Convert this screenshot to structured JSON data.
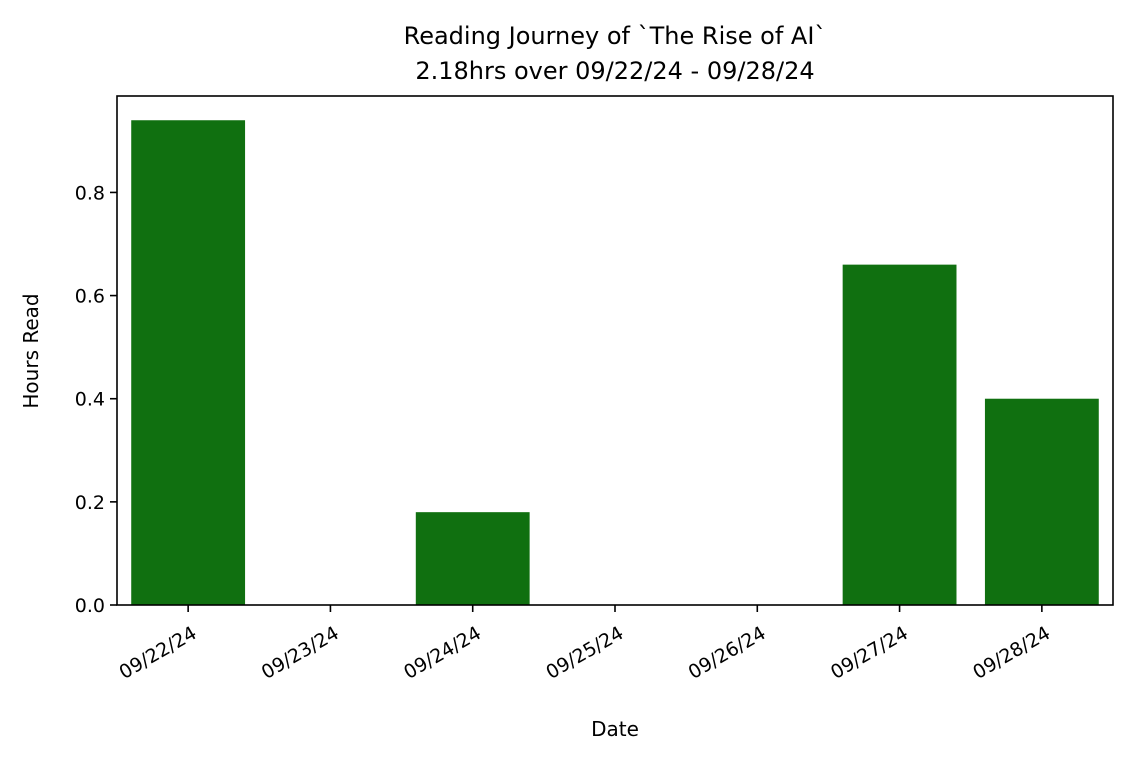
{
  "chart_data": {
    "type": "bar",
    "title": "Reading Journey of `The Rise of AI`",
    "subtitle": "2.18hrs over 09/22/24 - 09/28/24",
    "xlabel": "Date",
    "ylabel": "Hours Read",
    "categories": [
      "09/22/24",
      "09/23/24",
      "09/24/24",
      "09/25/24",
      "09/26/24",
      "09/27/24",
      "09/28/24"
    ],
    "values": [
      0.94,
      0.0,
      0.18,
      0.0,
      0.0,
      0.66,
      0.4
    ],
    "ylim": [
      0,
      0.987
    ],
    "yticks": [
      "0.0",
      "0.2",
      "0.4",
      "0.6",
      "0.8"
    ],
    "bar_color": "#107010",
    "grid": false,
    "legend": "none"
  }
}
